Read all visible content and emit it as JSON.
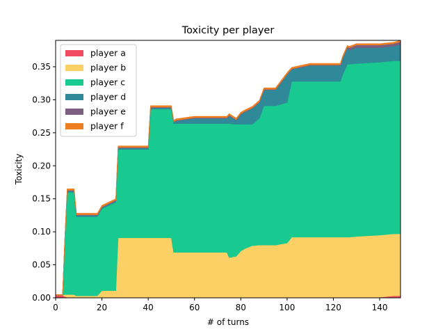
{
  "chart_data": {
    "type": "area",
    "stacked": true,
    "title": "Toxicity per player",
    "xlabel": "# of turns",
    "ylabel": "Toxicity",
    "xlim": [
      0,
      149
    ],
    "ylim": [
      0,
      0.39
    ],
    "xticks": [
      0,
      20,
      40,
      60,
      80,
      100,
      120,
      140
    ],
    "yticks": [
      0.0,
      0.05,
      0.1,
      0.15,
      0.2,
      0.25,
      0.3,
      0.35
    ],
    "grid": false,
    "legend_position": "upper-left",
    "x": [
      0,
      3,
      4,
      5,
      8,
      9,
      18,
      20,
      26,
      27,
      40,
      41,
      50,
      51,
      52,
      60,
      70,
      72,
      74,
      75,
      78,
      80,
      82,
      85,
      88,
      90,
      95,
      100,
      102,
      110,
      120,
      123,
      124,
      126,
      127,
      130,
      140,
      146,
      149
    ],
    "series": [
      {
        "name": "player a",
        "color": "#ef4a5f",
        "values": [
          0.004,
          0.004,
          0.002,
          0.001,
          0.001,
          0.001,
          0.001,
          0.001,
          0.001,
          0.001,
          0.001,
          0.001,
          0.001,
          0.001,
          0.001,
          0.001,
          0.001,
          0.001,
          0.001,
          0.001,
          0.001,
          0.001,
          0.001,
          0.001,
          0.001,
          0.001,
          0.001,
          0.001,
          0.001,
          0.001,
          0.001,
          0.001,
          0.001,
          0.001,
          0.001,
          0.001,
          0.001,
          0.003,
          0.003
        ]
      },
      {
        "name": "player b",
        "color": "#fdd065",
        "values": [
          0.0,
          0.0,
          0.003,
          0.004,
          0.004,
          0.002,
          0.002,
          0.01,
          0.01,
          0.09,
          0.09,
          0.09,
          0.09,
          0.068,
          0.068,
          0.068,
          0.068,
          0.068,
          0.068,
          0.06,
          0.062,
          0.07,
          0.074,
          0.078,
          0.079,
          0.079,
          0.079,
          0.082,
          0.091,
          0.091,
          0.091,
          0.091,
          0.091,
          0.091,
          0.091,
          0.092,
          0.094,
          0.094,
          0.094
        ]
      },
      {
        "name": "player c",
        "color": "#18c990",
        "values": [
          0.0,
          0.0,
          0.085,
          0.155,
          0.155,
          0.12,
          0.12,
          0.124,
          0.134,
          0.134,
          0.134,
          0.195,
          0.195,
          0.195,
          0.195,
          0.195,
          0.195,
          0.195,
          0.195,
          0.203,
          0.2,
          0.192,
          0.188,
          0.184,
          0.192,
          0.211,
          0.211,
          0.213,
          0.236,
          0.236,
          0.236,
          0.236,
          0.246,
          0.262,
          0.262,
          0.262,
          0.262,
          0.262,
          0.262
        ]
      },
      {
        "name": "player d",
        "color": "#2f8998",
        "values": [
          0.0,
          0.0,
          0.0,
          0.002,
          0.002,
          0.002,
          0.002,
          0.002,
          0.002,
          0.002,
          0.002,
          0.002,
          0.002,
          0.002,
          0.004,
          0.008,
          0.008,
          0.008,
          0.008,
          0.012,
          0.006,
          0.015,
          0.019,
          0.024,
          0.024,
          0.024,
          0.024,
          0.042,
          0.018,
          0.024,
          0.024,
          0.024,
          0.025,
          0.024,
          0.021,
          0.024,
          0.022,
          0.022,
          0.025
        ]
      },
      {
        "name": "player e",
        "color": "#7c5f80",
        "values": [
          0.0,
          0.0,
          0.0,
          0.001,
          0.001,
          0.001,
          0.001,
          0.001,
          0.001,
          0.001,
          0.001,
          0.001,
          0.001,
          0.001,
          0.001,
          0.001,
          0.001,
          0.001,
          0.001,
          0.001,
          0.001,
          0.001,
          0.001,
          0.001,
          0.001,
          0.001,
          0.001,
          0.001,
          0.001,
          0.001,
          0.001,
          0.001,
          0.001,
          0.002,
          0.004,
          0.004,
          0.004,
          0.004,
          0.004
        ]
      },
      {
        "name": "player f",
        "color": "#ee7e22",
        "values": [
          0.001,
          0.001,
          0.002,
          0.002,
          0.002,
          0.002,
          0.002,
          0.002,
          0.002,
          0.002,
          0.002,
          0.002,
          0.002,
          0.002,
          0.002,
          0.002,
          0.002,
          0.002,
          0.002,
          0.002,
          0.002,
          0.002,
          0.002,
          0.002,
          0.002,
          0.002,
          0.002,
          0.002,
          0.002,
          0.002,
          0.002,
          0.002,
          0.002,
          0.002,
          0.002,
          0.002,
          0.002,
          0.002,
          0.002
        ]
      }
    ]
  }
}
